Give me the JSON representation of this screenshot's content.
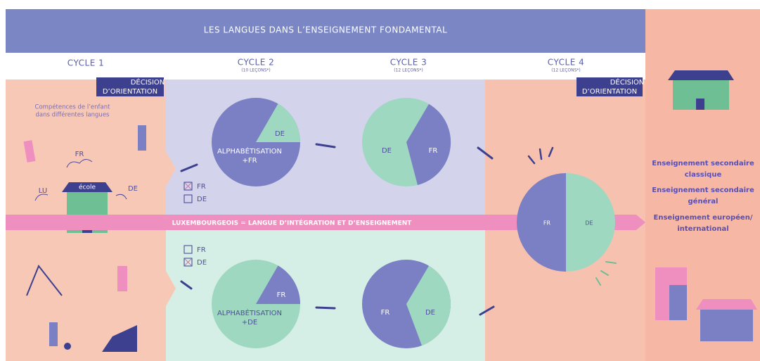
{
  "header": {
    "title": "LES LANGUES DANS L’ENSEIGNEMENT FONDAMENTAL"
  },
  "cycles": [
    {
      "label": "CYCLE 1"
    },
    {
      "label": "CYCLE 2",
      "lessons": "(10 LEÇONS*)"
    },
    {
      "label": "CYCLE 3",
      "lessons": "(12 LEÇONS*)"
    },
    {
      "label": "CYCLE 4",
      "lessons": "(12 LEÇONS*)"
    }
  ],
  "decision": [
    "DÉCISION",
    "D’ORIENTATION"
  ],
  "cycle1": {
    "caption": [
      "Compétences de l’enfant",
      "dans différentes langues"
    ],
    "languages": [
      "FR",
      "LU",
      "DE"
    ],
    "school": "école"
  },
  "tracks": [
    {
      "options": [
        "FR",
        "DE"
      ],
      "cycle2": {
        "slices": [
          "DE"
        ],
        "label": [
          "ALPHABÉTISATION",
          "+FR"
        ]
      },
      "cycle3": {
        "slices": [
          "DE",
          "FR"
        ]
      }
    },
    {
      "options": [
        "FR",
        "DE"
      ],
      "cycle2": {
        "slices": [
          "FR"
        ],
        "label": [
          "ALPHABÉTISATION",
          "+DE"
        ]
      },
      "cycle3": {
        "slices": [
          "FR",
          "DE"
        ]
      }
    }
  ],
  "band": "LUXEMBOURGEOIS = LANGUE D’INTÉGRATION ET D’ENSEIGNEMENT",
  "cycle4": {
    "slices": [
      "FR",
      "DE"
    ]
  },
  "secondary": [
    [
      "Enseignement secondaire",
      "classique"
    ],
    [
      "Enseignement secondaire",
      "général"
    ],
    [
      "Enseignement européen/",
      "international"
    ]
  ]
}
